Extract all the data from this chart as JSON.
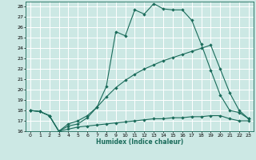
{
  "xlabel": "Humidex (Indice chaleur)",
  "bg_color": "#cce8e4",
  "grid_color": "#ffffff",
  "line_color": "#1a6b5a",
  "xlim": [
    -0.5,
    23.5
  ],
  "ylim": [
    16,
    28.5
  ],
  "yticks": [
    16,
    17,
    18,
    19,
    20,
    21,
    22,
    23,
    24,
    25,
    26,
    27,
    28
  ],
  "xticks": [
    0,
    1,
    2,
    3,
    4,
    5,
    6,
    7,
    8,
    9,
    10,
    11,
    12,
    13,
    14,
    15,
    16,
    17,
    18,
    19,
    20,
    21,
    22,
    23
  ],
  "line1_x": [
    0,
    1,
    2,
    3,
    4,
    5,
    6,
    7,
    8,
    9,
    10,
    11,
    12,
    13,
    14,
    15,
    16,
    17,
    18,
    19,
    20,
    21,
    22,
    23
  ],
  "line1_y": [
    18.0,
    17.9,
    17.5,
    16.0,
    16.2,
    16.4,
    16.5,
    16.6,
    16.7,
    16.8,
    16.9,
    17.0,
    17.1,
    17.2,
    17.2,
    17.3,
    17.3,
    17.4,
    17.4,
    17.5,
    17.5,
    17.2,
    17.0,
    17.0
  ],
  "line2_x": [
    0,
    1,
    2,
    3,
    4,
    5,
    6,
    7,
    8,
    9,
    10,
    11,
    12,
    13,
    14,
    15,
    16,
    17,
    18,
    19,
    20,
    21,
    22,
    23
  ],
  "line2_y": [
    18.0,
    17.9,
    17.5,
    16.0,
    16.7,
    17.0,
    17.5,
    18.3,
    19.3,
    20.2,
    20.9,
    21.5,
    22.0,
    22.4,
    22.8,
    23.1,
    23.4,
    23.7,
    24.0,
    24.3,
    22.0,
    19.7,
    18.0,
    17.2
  ],
  "line3_x": [
    0,
    1,
    2,
    3,
    4,
    5,
    6,
    7,
    8,
    9,
    10,
    11,
    12,
    13,
    14,
    15,
    16,
    17,
    18,
    19,
    20,
    21,
    22,
    23
  ],
  "line3_y": [
    18.0,
    17.9,
    17.5,
    16.0,
    16.5,
    16.7,
    17.3,
    18.3,
    20.3,
    25.6,
    25.2,
    27.7,
    27.3,
    28.3,
    27.8,
    27.7,
    27.7,
    26.7,
    24.4,
    21.9,
    19.5,
    18.0,
    17.8,
    17.2
  ]
}
